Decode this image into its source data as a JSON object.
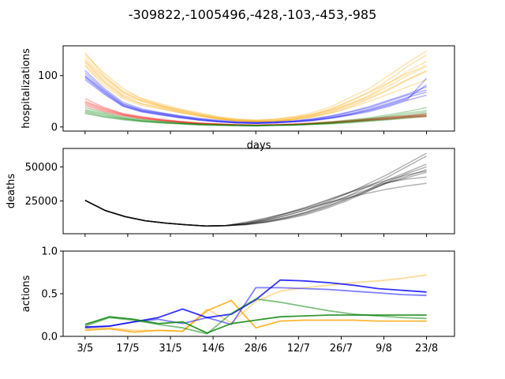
{
  "title": "-309822,-1005496,-428,-103,-453,-985",
  "chart_data": [
    {
      "type": "line",
      "ylabel": "hospitalizations",
      "xlabel": "days",
      "ylim": [
        -8,
        158
      ],
      "y_ticks": [
        0,
        100
      ],
      "grid": false,
      "series": [
        {
          "color": "#ffa500",
          "alpha": 0.3,
          "values": [
            145,
            100,
            70,
            55,
            45,
            35,
            28,
            20,
            15,
            13,
            15,
            20,
            28,
            40,
            58,
            75,
            100,
            125,
            148
          ]
        },
        {
          "color": "#ffa500",
          "alpha": 0.3,
          "values": [
            140,
            105,
            75,
            55,
            42,
            33,
            25,
            18,
            14,
            12,
            14,
            18,
            25,
            35,
            50,
            68,
            92,
            118,
            140
          ]
        },
        {
          "color": "#ffa500",
          "alpha": 0.3,
          "values": [
            135,
            98,
            68,
            50,
            40,
            32,
            24,
            17,
            13,
            11,
            12,
            16,
            22,
            32,
            45,
            62,
            85,
            108,
            128
          ]
        },
        {
          "color": "#ffa500",
          "alpha": 0.3,
          "values": [
            130,
            95,
            66,
            52,
            42,
            33,
            26,
            19,
            15,
            13,
            15,
            19,
            24,
            33,
            46,
            60,
            80,
            100,
            118
          ]
        },
        {
          "color": "#ffa500",
          "alpha": 0.3,
          "values": [
            128,
            90,
            62,
            50,
            40,
            30,
            22,
            16,
            12,
            10,
            11,
            14,
            20,
            28,
            40,
            55,
            72,
            92,
            110
          ]
        },
        {
          "color": "#ffa500",
          "alpha": 0.3,
          "values": [
            125,
            88,
            60,
            45,
            38,
            30,
            23,
            17,
            12,
            11,
            12,
            16,
            24,
            36,
            52,
            68,
            86,
            104,
            120
          ]
        },
        {
          "color": "#ffa500",
          "alpha": 0.3,
          "values": [
            120,
            85,
            58,
            45,
            36,
            28,
            21,
            15,
            11,
            10,
            11,
            15,
            21,
            30,
            43,
            57,
            74,
            92,
            108
          ]
        },
        {
          "color": "#ffa500",
          "alpha": 0.3,
          "values": [
            118,
            80,
            55,
            42,
            35,
            28,
            22,
            16,
            12,
            10,
            11,
            14,
            19,
            27,
            38,
            50,
            64,
            78,
            92
          ]
        },
        {
          "color": "#0000ff",
          "alpha": 0.3,
          "values": [
            110,
            75,
            48,
            35,
            28,
            22,
            17,
            13,
            10,
            9,
            10,
            12,
            16,
            22,
            30,
            40,
            52,
            64,
            78
          ]
        },
        {
          "color": "#0000ff",
          "alpha": 0.3,
          "values": [
            105,
            72,
            45,
            33,
            27,
            21,
            16,
            12,
            9,
            8,
            9,
            11,
            15,
            21,
            29,
            38,
            50,
            62,
            72
          ]
        },
        {
          "color": "#0000ff",
          "alpha": 0.3,
          "values": [
            100,
            70,
            44,
            32,
            26,
            20,
            15,
            11,
            9,
            8,
            9,
            11,
            14,
            19,
            26,
            35,
            46,
            58,
            68
          ]
        },
        {
          "color": "#0000ff",
          "alpha": 0.3,
          "values": [
            98,
            68,
            42,
            31,
            25,
            19,
            14,
            11,
            8,
            7,
            8,
            10,
            13,
            18,
            25,
            33,
            44,
            56,
            82
          ]
        },
        {
          "color": "#0000ff",
          "alpha": 0.3,
          "values": [
            96,
            66,
            41,
            30,
            24,
            18,
            14,
            10,
            8,
            7,
            8,
            10,
            13,
            18,
            24,
            32,
            42,
            54,
            95
          ]
        },
        {
          "color": "#0000ff",
          "alpha": 0.3,
          "values": [
            92,
            64,
            40,
            29,
            23,
            18,
            13,
            10,
            8,
            7,
            8,
            10,
            12,
            17,
            23,
            30,
            40,
            52,
            62
          ]
        },
        {
          "color": "#ff0000",
          "alpha": 0.3,
          "values": [
            55,
            38,
            26,
            20,
            15,
            11,
            8,
            6,
            5,
            4,
            5,
            6,
            8,
            10,
            13,
            16,
            19,
            22,
            26
          ]
        },
        {
          "color": "#ff0000",
          "alpha": 0.3,
          "values": [
            50,
            36,
            25,
            19,
            14,
            10,
            7,
            6,
            4,
            4,
            4,
            5,
            7,
            9,
            12,
            15,
            18,
            21,
            24
          ]
        },
        {
          "color": "#ff0000",
          "alpha": 0.3,
          "values": [
            48,
            34,
            24,
            18,
            13,
            10,
            7,
            5,
            4,
            3,
            4,
            5,
            7,
            9,
            11,
            14,
            17,
            20,
            22
          ]
        },
        {
          "color": "#ff0000",
          "alpha": 0.3,
          "values": [
            45,
            32,
            23,
            17,
            13,
            9,
            7,
            5,
            4,
            3,
            4,
            5,
            6,
            8,
            11,
            13,
            16,
            19,
            21
          ]
        },
        {
          "color": "#ff0000",
          "alpha": 0.3,
          "values": [
            42,
            30,
            22,
            16,
            12,
            9,
            6,
            5,
            4,
            3,
            4,
            5,
            6,
            8,
            10,
            13,
            15,
            18,
            20
          ]
        },
        {
          "color": "#008000",
          "alpha": 0.3,
          "values": [
            38,
            28,
            20,
            15,
            11,
            8,
            6,
            5,
            4,
            3,
            4,
            5,
            7,
            10,
            14,
            18,
            24,
            30,
            38
          ]
        },
        {
          "color": "#008000",
          "alpha": 0.3,
          "values": [
            34,
            26,
            18,
            13,
            10,
            7,
            5,
            4,
            3,
            3,
            3,
            4,
            6,
            9,
            12,
            16,
            21,
            27,
            32
          ]
        },
        {
          "color": "#008000",
          "alpha": 0.3,
          "values": [
            32,
            24,
            17,
            12,
            9,
            7,
            5,
            4,
            3,
            3,
            3,
            4,
            6,
            8,
            11,
            15,
            20,
            24,
            29
          ]
        },
        {
          "color": "#008000",
          "alpha": 0.3,
          "values": [
            30,
            22,
            16,
            12,
            9,
            7,
            5,
            4,
            3,
            2,
            3,
            4,
            5,
            7,
            10,
            13,
            17,
            21,
            26
          ]
        },
        {
          "color": "#008000",
          "alpha": 0.3,
          "values": [
            28,
            20,
            15,
            11,
            8,
            6,
            4,
            3,
            3,
            2,
            3,
            4,
            5,
            7,
            9,
            12,
            15,
            19,
            23
          ]
        },
        {
          "color": "#008000",
          "alpha": 0.3,
          "values": [
            26,
            19,
            14,
            10,
            8,
            6,
            4,
            3,
            2,
            2,
            3,
            3,
            5,
            6,
            8,
            11,
            14,
            17,
            21
          ]
        }
      ]
    },
    {
      "type": "line",
      "ylabel": "deaths",
      "ylim": [
        1000,
        63500
      ],
      "y_ticks": [
        25000,
        50000
      ],
      "grid": false,
      "series": [
        {
          "color": "#000000",
          "alpha": 0.3,
          "values": [
            25500,
            18000,
            13500,
            10500,
            8800,
            7600,
            6700,
            6900,
            9000,
            12000,
            16000,
            20500,
            25500,
            30500,
            36000,
            40000,
            44000,
            47000
          ]
        },
        {
          "color": "#000000",
          "alpha": 0.3,
          "values": [
            25500,
            18000,
            13500,
            10500,
            8800,
            7600,
            6700,
            6900,
            8500,
            11000,
            14500,
            18500,
            23000,
            28000,
            33000,
            38000,
            42000,
            46000
          ]
        },
        {
          "color": "#000000",
          "alpha": 0.3,
          "values": [
            25500,
            18000,
            13500,
            10500,
            8800,
            7600,
            6700,
            6900,
            8000,
            10200,
            13000,
            16500,
            21000,
            26500,
            32000,
            38000,
            43000,
            48000
          ]
        },
        {
          "color": "#000000",
          "alpha": 0.3,
          "values": [
            25500,
            18000,
            13500,
            10500,
            8800,
            7600,
            6700,
            6900,
            7800,
            9500,
            12200,
            15800,
            20500,
            26000,
            32500,
            40000,
            46000,
            52000
          ]
        },
        {
          "color": "#000000",
          "alpha": 0.3,
          "values": [
            25500,
            18000,
            13500,
            10500,
            8800,
            7600,
            6700,
            6900,
            7600,
            9200,
            11800,
            15000,
            19500,
            25000,
            31500,
            38500,
            45000,
            50000
          ]
        },
        {
          "color": "#000000",
          "alpha": 0.3,
          "values": [
            25500,
            18000,
            13500,
            10500,
            8800,
            7600,
            6700,
            6900,
            7700,
            9800,
            12800,
            16800,
            22000,
            28000,
            35000,
            42000,
            50000,
            58000
          ]
        },
        {
          "color": "#000000",
          "alpha": 0.3,
          "values": [
            25500,
            18000,
            13500,
            10500,
            8800,
            7600,
            6700,
            6900,
            8200,
            10800,
            14200,
            18500,
            24000,
            30000,
            37000,
            44000,
            52000,
            60000
          ]
        },
        {
          "color": "#000000",
          "alpha": 0.3,
          "values": [
            25500,
            18000,
            13500,
            10500,
            8800,
            7600,
            6700,
            6900,
            8600,
            11500,
            15500,
            20000,
            25000,
            30500,
            35000,
            38500,
            41000,
            42500
          ]
        },
        {
          "color": "#000000",
          "alpha": 0.3,
          "values": [
            25500,
            18000,
            13500,
            10500,
            8800,
            7600,
            6700,
            6900,
            9500,
            12500,
            16000,
            19500,
            23500,
            27000,
            30500,
            33500,
            36000,
            38000
          ]
        }
      ]
    },
    {
      "type": "line",
      "ylabel": "actions",
      "ylim": [
        0,
        1
      ],
      "y_ticks": [
        0.0,
        0.5,
        1.0
      ],
      "x_tick_labels": [
        "3/5",
        "17/5",
        "31/5",
        "14/6",
        "28/6",
        "12/7",
        "26/7",
        "9/8",
        "23/8"
      ],
      "grid": false,
      "series": [
        {
          "color": "#ffa500",
          "alpha": 0.4,
          "values": [
            0.09,
            0.1,
            0.07,
            0.07,
            0.06,
            0.32,
            0.16,
            0.41,
            0.53,
            0.57,
            0.6,
            0.63,
            0.65,
            0.68,
            0.72
          ]
        },
        {
          "color": "#ffa500",
          "alpha": 0.8,
          "values": [
            0.07,
            0.09,
            0.05,
            0.07,
            0.06,
            0.3,
            0.42,
            0.1,
            0.18,
            0.19,
            0.19,
            0.19,
            0.18,
            0.18,
            0.18
          ]
        },
        {
          "color": "#0000ff",
          "alpha": 0.5,
          "values": [
            0.1,
            0.12,
            0.17,
            0.2,
            0.15,
            0.22,
            0.14,
            0.57,
            0.57,
            0.56,
            0.55,
            0.53,
            0.51,
            0.49,
            0.48
          ]
        },
        {
          "color": "#0000ff",
          "alpha": 0.8,
          "values": [
            0.11,
            0.12,
            0.17,
            0.22,
            0.32,
            0.22,
            0.26,
            0.43,
            0.66,
            0.65,
            0.63,
            0.6,
            0.56,
            0.54,
            0.52
          ]
        },
        {
          "color": "#008000",
          "alpha": 0.5,
          "values": [
            0.12,
            0.22,
            0.19,
            0.14,
            0.1,
            0.03,
            0.27,
            0.44,
            0.4,
            0.35,
            0.3,
            0.26,
            0.24,
            0.22,
            0.21
          ]
        },
        {
          "color": "#008000",
          "alpha": 0.8,
          "values": [
            0.14,
            0.23,
            0.2,
            0.15,
            0.17,
            0.04,
            0.15,
            0.19,
            0.23,
            0.24,
            0.25,
            0.25,
            0.25,
            0.25,
            0.25
          ]
        }
      ]
    }
  ]
}
